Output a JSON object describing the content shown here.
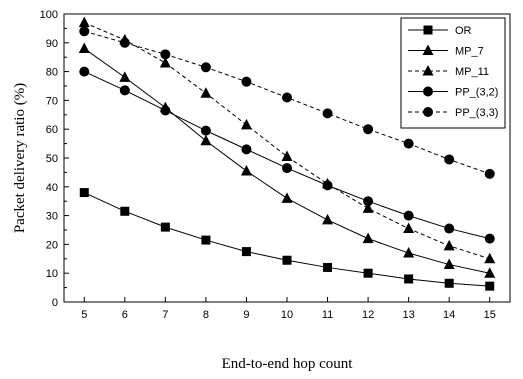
{
  "chart_data": {
    "type": "line",
    "title": "",
    "xlabel": "End-to-end hop count",
    "ylabel": "Packet delivery ratio (%)",
    "xlim": [
      4.5,
      15.5
    ],
    "ylim": [
      0,
      100
    ],
    "x_ticks": [
      5,
      6,
      7,
      8,
      9,
      10,
      11,
      12,
      13,
      14,
      15
    ],
    "y_ticks": [
      0,
      10,
      20,
      30,
      40,
      50,
      60,
      70,
      80,
      90,
      100
    ],
    "grid": false,
    "legend_position": "top-right",
    "x": [
      5,
      6,
      7,
      8,
      9,
      10,
      11,
      12,
      13,
      14,
      15
    ],
    "series": [
      {
        "name": "OR",
        "marker": "square",
        "line": "solid",
        "values": [
          38,
          31.5,
          26,
          21.5,
          17.5,
          14.5,
          12,
          10,
          8,
          6.5,
          5.5
        ]
      },
      {
        "name": "MP_7",
        "marker": "triangle",
        "line": "solid",
        "values": [
          88,
          78,
          67.5,
          56,
          45.5,
          36,
          28.5,
          22,
          17,
          13,
          10
        ]
      },
      {
        "name": "MP_11",
        "marker": "triangle",
        "line": "dashed",
        "values": [
          97,
          91,
          83,
          72.5,
          61.5,
          50.5,
          41,
          32.5,
          25.5,
          19.5,
          15
        ]
      },
      {
        "name": "PP_(3,2)",
        "marker": "circle",
        "line": "solid",
        "values": [
          80,
          73.5,
          66.5,
          59.5,
          53,
          46.5,
          40.5,
          35,
          30,
          25.5,
          22
        ]
      },
      {
        "name": "PP_(3,3)",
        "marker": "circle",
        "line": "dashed",
        "values": [
          94,
          90,
          86,
          81.5,
          76.5,
          71,
          65.5,
          60,
          55,
          49.5,
          44.5
        ]
      }
    ]
  }
}
